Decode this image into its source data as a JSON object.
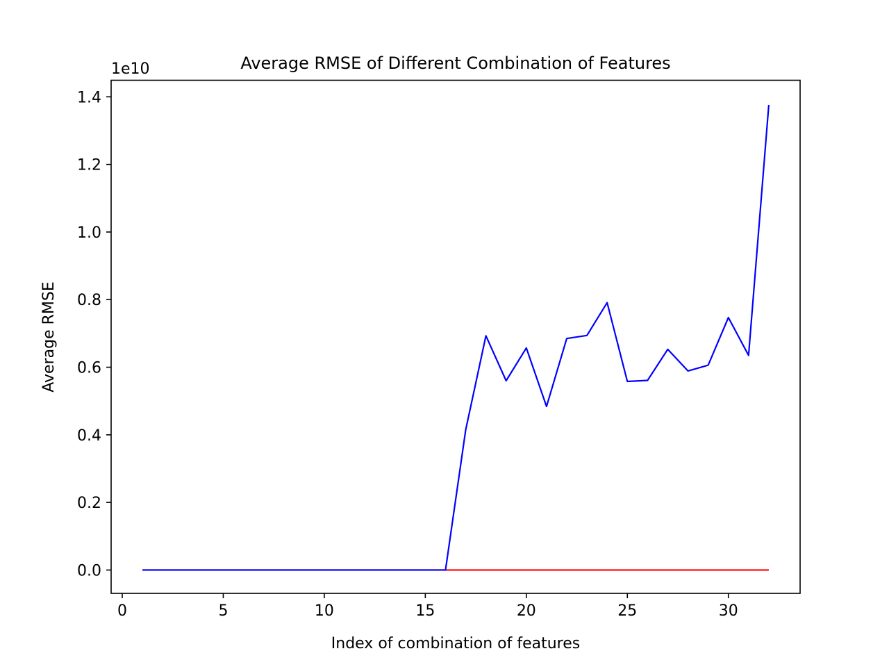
{
  "chart_data": {
    "type": "line",
    "title": "Average RMSE of Different Combination of Features",
    "xlabel": "Index of combination of features",
    "ylabel": "Average RMSE",
    "y_offset_label": "1e10",
    "y_scale": 10000000000,
    "xlim": [
      -0.55,
      33.55
    ],
    "ylim": [
      -0.069,
      1.449
    ],
    "xticks": [
      0,
      5,
      10,
      15,
      20,
      25,
      30
    ],
    "xtick_labels": [
      "0",
      "5",
      "10",
      "15",
      "20",
      "25",
      "30"
    ],
    "yticks": [
      0.0,
      0.2,
      0.4,
      0.6,
      0.8,
      1.0,
      1.2,
      1.4
    ],
    "ytick_labels": [
      "0.0",
      "0.2",
      "0.4",
      "0.6",
      "0.8",
      "1.0",
      "1.2",
      "1.4"
    ],
    "grid": false,
    "x": [
      1,
      2,
      3,
      4,
      5,
      6,
      7,
      8,
      9,
      10,
      11,
      12,
      13,
      14,
      15,
      16,
      17,
      18,
      19,
      20,
      21,
      22,
      23,
      24,
      25,
      26,
      27,
      28,
      29,
      30,
      31,
      32
    ],
    "series": [
      {
        "color": "#ff0000",
        "values": [
          0,
          0,
          0,
          0,
          0,
          0,
          0,
          0,
          0,
          0,
          0,
          0,
          0,
          0,
          0,
          0,
          0,
          0,
          0,
          0,
          0,
          0,
          0,
          0,
          0,
          0,
          0,
          0,
          0,
          0,
          0,
          0
        ]
      },
      {
        "color": "#0000ff",
        "values": [
          0,
          0,
          0,
          0,
          0,
          0,
          0,
          0,
          0,
          0,
          0,
          0,
          0,
          0,
          0,
          0,
          0.415,
          0.693,
          0.56,
          0.657,
          0.484,
          0.685,
          0.694,
          0.791,
          0.558,
          0.561,
          0.653,
          0.589,
          0.606,
          0.747,
          0.635,
          1.376
        ]
      }
    ]
  }
}
